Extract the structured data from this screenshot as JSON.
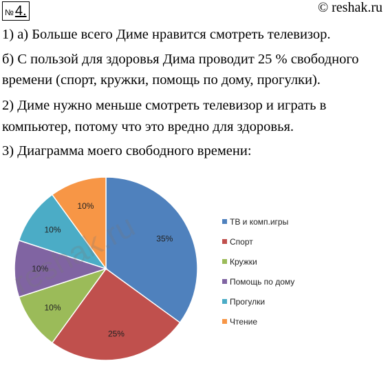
{
  "header": {
    "badge_prefix": "№",
    "badge_number": "4.",
    "copyright": "© reshak.ru"
  },
  "text": {
    "line1": "1) а) Больше всего Диме нравится смотреть телевизор.",
    "line2": "б) С пользой для здоровья Дима проводит 25 % свободного",
    "line3": "времени (спорт, кружки, помощь по дому, прогулки).",
    "line4": "2) Диме нужно меньше смотреть телевизор и играть в",
    "line5": "компьютер, потому что это вредно для здоровья.",
    "line6": "3) Диаграмма моего свободного времени:"
  },
  "watermark": "reshak.ru",
  "chart_data": {
    "type": "pie",
    "legend_position": "right",
    "slices": [
      {
        "name": "ТВ и комп.игры",
        "value": 35,
        "label": "35%",
        "color": "#4F81BD"
      },
      {
        "name": "Спорт",
        "value": 25,
        "label": "25%",
        "color": "#C0504D"
      },
      {
        "name": "Кружки",
        "value": 10,
        "label": "10%",
        "color": "#9BBB59"
      },
      {
        "name": "Помощь по дому",
        "value": 10,
        "label": "10%",
        "color": "#8064A2"
      },
      {
        "name": "Прогулки",
        "value": 10,
        "label": "10%",
        "color": "#4BACC6"
      },
      {
        "name": "Чтение",
        "value": 10,
        "label": "10%",
        "color": "#F79646"
      }
    ]
  }
}
